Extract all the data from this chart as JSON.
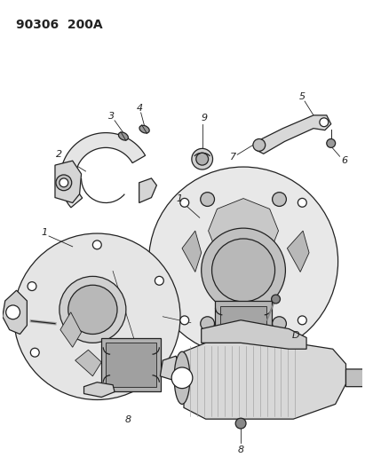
{
  "title": "90306  200A",
  "bg": "#ffffff",
  "lc": "#222222",
  "fc_light": "#e8e8e8",
  "fc_mid": "#d0d0d0",
  "fc_dark": "#b0b0b0"
}
